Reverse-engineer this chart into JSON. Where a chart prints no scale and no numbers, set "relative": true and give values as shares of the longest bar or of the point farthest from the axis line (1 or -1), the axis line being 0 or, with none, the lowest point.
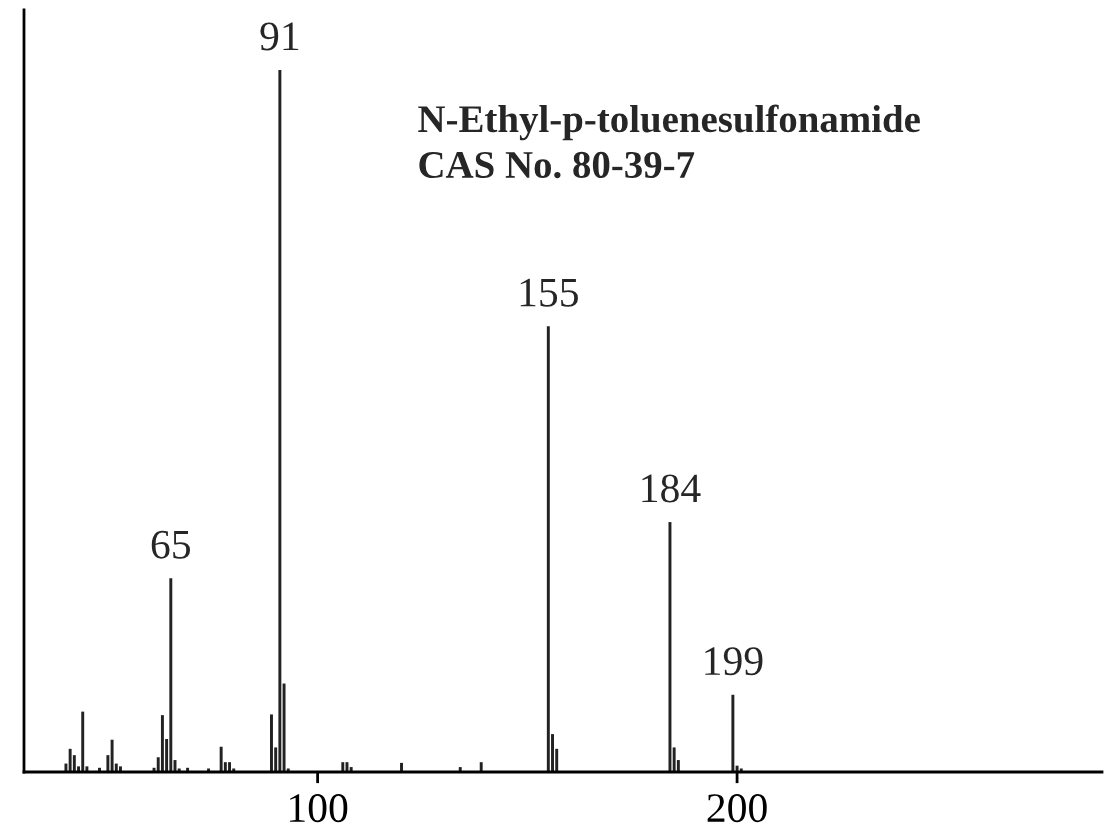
{
  "chart_data": {
    "type": "bar",
    "relative": true,
    "title": "N-Ethyl-p-toluenesulfonamide",
    "subtitle": "CAS No. 80-39-7",
    "x": [
      40,
      41,
      42,
      43,
      44,
      45,
      48,
      50,
      51,
      52,
      53,
      61,
      62,
      63,
      64,
      65,
      66,
      67,
      69,
      74,
      77,
      78,
      79,
      80,
      89,
      90,
      91,
      92,
      93,
      106,
      107,
      108,
      120,
      134,
      139,
      155,
      156,
      157,
      184,
      185,
      186,
      199,
      200,
      201
    ],
    "values": [
      0.012,
      0.033,
      0.024,
      0.008,
      0.086,
      0.008,
      0.006,
      0.024,
      0.046,
      0.012,
      0.008,
      0.006,
      0.021,
      0.081,
      0.047,
      0.276,
      0.017,
      0.005,
      0.006,
      0.005,
      0.036,
      0.014,
      0.014,
      0.005,
      0.082,
      0.035,
      1.0,
      0.126,
      0.005,
      0.014,
      0.014,
      0.007,
      0.013,
      0.007,
      0.014,
      0.635,
      0.054,
      0.033,
      0.356,
      0.035,
      0.017,
      0.11,
      0.009,
      0.005
    ],
    "annotations": [
      {
        "text": "65",
        "x": 65,
        "y": 0.276
      },
      {
        "text": "91",
        "x": 91,
        "y": 1.0
      },
      {
        "text": "155",
        "x": 155,
        "y": 0.635
      },
      {
        "text": "184",
        "x": 184,
        "y": 0.356
      },
      {
        "text": "199",
        "x": 199,
        "y": 0.11
      }
    ],
    "color": "#222222",
    "xlim": [
      30,
      287
    ],
    "xticks": [
      100,
      200
    ],
    "grid": false,
    "legend": false
  }
}
